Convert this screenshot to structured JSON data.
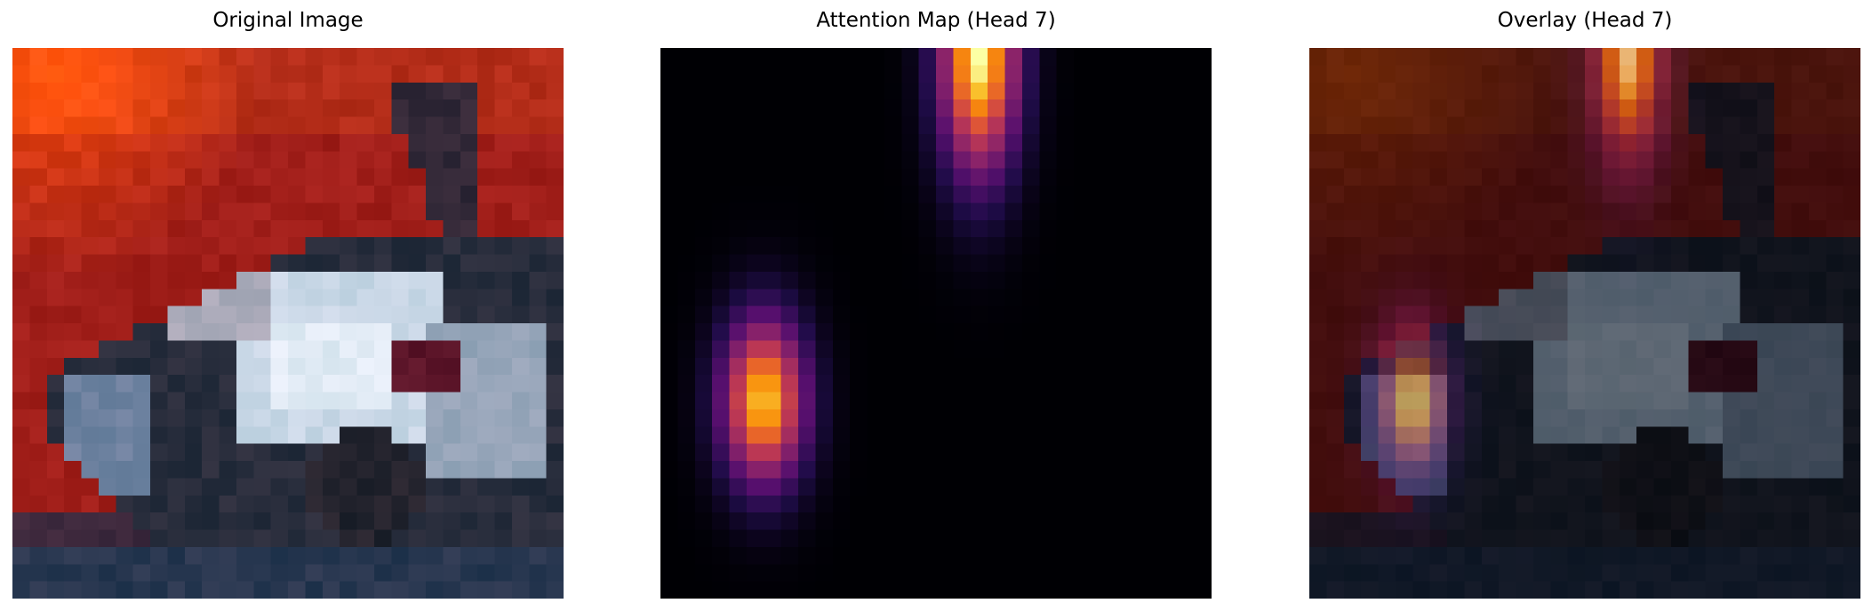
{
  "panels": [
    {
      "title": "Original Image",
      "image": "pixelated-car-photo"
    },
    {
      "title": "Attention Map (Head 7)",
      "image": "attention-heatmap",
      "colormap": "inferno"
    },
    {
      "title": "Overlay (Head 7)",
      "image": "attention-overlay-on-photo"
    }
  ],
  "colors": {
    "background": "#ffffff",
    "heatmap_low": "#000004",
    "heatmap_high": "#fcffa4"
  }
}
